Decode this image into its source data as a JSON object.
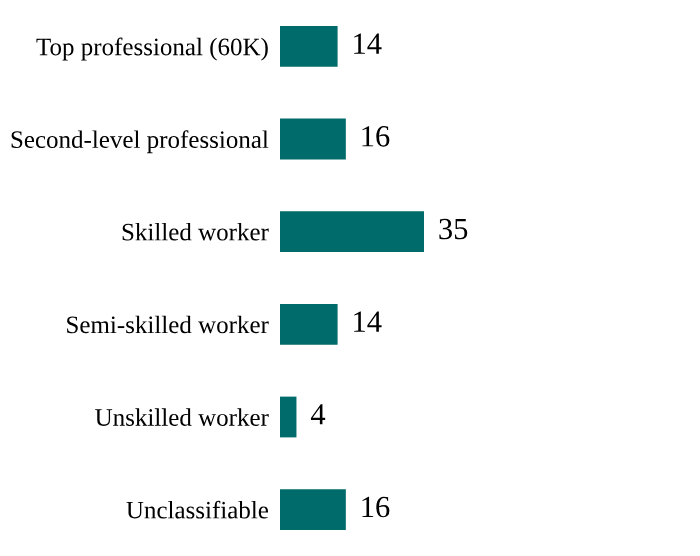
{
  "chart_data": {
    "type": "bar",
    "orientation": "horizontal",
    "data_labels": true,
    "grid": false,
    "legend": false,
    "categories": [
      "Top professional (60K)",
      "Second-level professional",
      "Skilled worker",
      "Semi-skilled worker",
      "Unskilled worker",
      "Unclassifiable"
    ],
    "values": [
      14,
      16,
      35,
      14,
      4,
      16
    ],
    "color": "#006b6b"
  }
}
